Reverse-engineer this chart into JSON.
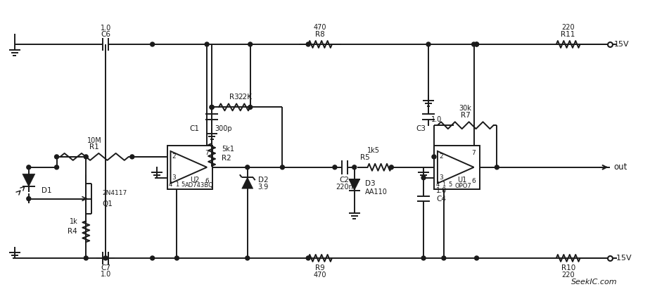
{
  "background": "#ffffff",
  "line_color": "#1a1a1a",
  "line_width": 1.4,
  "watermark": "SeekIC.com",
  "components": {
    "C6": "1.0",
    "C7": "1.0",
    "C1": "300p",
    "C2": "220n",
    "C3": "1.0",
    "C4": "1.0",
    "R1": "10M",
    "R2": "5k1",
    "R3": "22K",
    "R4": "1k",
    "R5": "1k5",
    "R7": "30k",
    "R8": "470",
    "R9": "470",
    "R10": "220",
    "R11": "220",
    "D2_val": "3.9",
    "D3_val": "AA110",
    "Q1_val": "2N4117",
    "U1_val": "OPO7",
    "U2_val": "AD743BQ"
  }
}
